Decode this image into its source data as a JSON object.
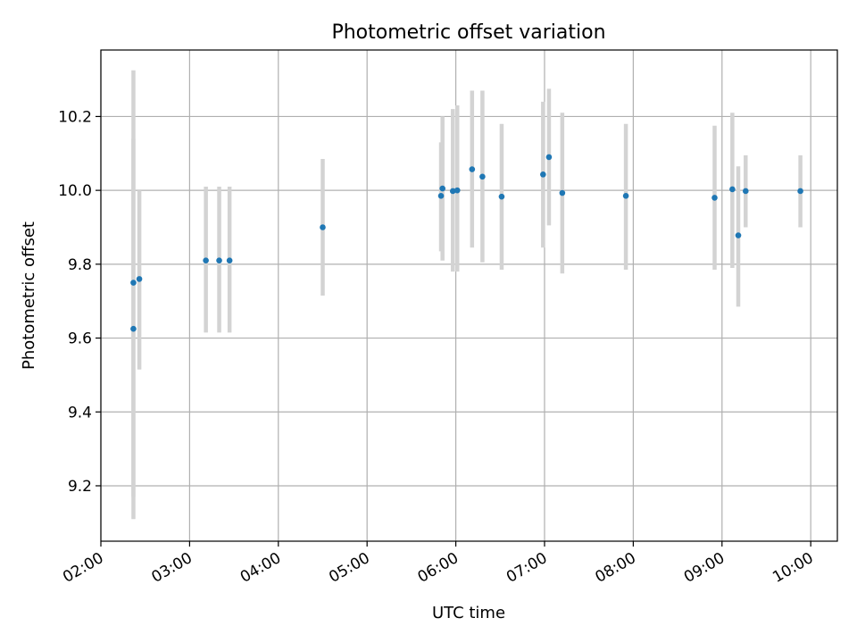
{
  "chart_data": {
    "type": "scatter",
    "title": "Photometric offset variation",
    "xlabel": "UTC time",
    "ylabel": "Photometric offset",
    "x_tick_labels": [
      "02:00",
      "03:00",
      "04:00",
      "05:00",
      "06:00",
      "07:00",
      "08:00",
      "09:00",
      "10:00"
    ],
    "y_tick_labels": [
      "9.2",
      "9.4",
      "9.6",
      "9.8",
      "10.0",
      "10.2"
    ],
    "x_ticks": [
      "02:00",
      "03:00",
      "04:00",
      "05:00",
      "06:00",
      "07:00",
      "08:00",
      "09:00",
      "10:00"
    ],
    "y_ticks": [
      9.2,
      9.4,
      9.6,
      9.8,
      10.0,
      10.2
    ],
    "xlim": [
      "02:00",
      "10:18"
    ],
    "ylim": [
      9.05,
      10.38
    ],
    "grid": true,
    "legend": "none",
    "colors": {
      "point": "#1f77b4",
      "error_bar": "#d3d3d3",
      "grid": "#b0b0b0"
    },
    "points": [
      {
        "time": "02:22",
        "y": 9.625,
        "ylo": 9.11,
        "yhi": 10.14
      },
      {
        "time": "02:22",
        "y": 9.75,
        "ylo": 9.17,
        "yhi": 10.325
      },
      {
        "time": "02:26",
        "y": 9.76,
        "ylo": 9.515,
        "yhi": 10.0
      },
      {
        "time": "03:11",
        "y": 9.81,
        "ylo": 9.615,
        "yhi": 10.01
      },
      {
        "time": "03:20",
        "y": 9.81,
        "ylo": 9.615,
        "yhi": 10.01
      },
      {
        "time": "03:27",
        "y": 9.81,
        "ylo": 9.615,
        "yhi": 10.01
      },
      {
        "time": "04:30",
        "y": 9.9,
        "ylo": 9.715,
        "yhi": 10.085
      },
      {
        "time": "05:50",
        "y": 9.985,
        "ylo": 9.835,
        "yhi": 10.13
      },
      {
        "time": "05:51",
        "y": 10.005,
        "ylo": 9.81,
        "yhi": 10.2
      },
      {
        "time": "05:58",
        "y": 9.998,
        "ylo": 9.78,
        "yhi": 10.22
      },
      {
        "time": "06:01",
        "y": 10.0,
        "ylo": 9.78,
        "yhi": 10.23
      },
      {
        "time": "06:11",
        "y": 10.057,
        "ylo": 9.845,
        "yhi": 10.27
      },
      {
        "time": "06:18",
        "y": 10.037,
        "ylo": 9.805,
        "yhi": 10.27
      },
      {
        "time": "06:31",
        "y": 9.983,
        "ylo": 9.785,
        "yhi": 10.18
      },
      {
        "time": "06:59",
        "y": 10.043,
        "ylo": 9.845,
        "yhi": 10.24
      },
      {
        "time": "07:03",
        "y": 10.09,
        "ylo": 9.905,
        "yhi": 10.275
      },
      {
        "time": "07:12",
        "y": 9.993,
        "ylo": 9.775,
        "yhi": 10.21
      },
      {
        "time": "07:55",
        "y": 9.985,
        "ylo": 9.785,
        "yhi": 10.18
      },
      {
        "time": "08:55",
        "y": 9.98,
        "ylo": 9.785,
        "yhi": 10.175
      },
      {
        "time": "09:07",
        "y": 10.003,
        "ylo": 9.79,
        "yhi": 10.21
      },
      {
        "time": "09:11",
        "y": 9.878,
        "ylo": 9.685,
        "yhi": 10.065
      },
      {
        "time": "09:16",
        "y": 9.998,
        "ylo": 9.9,
        "yhi": 10.095
      },
      {
        "time": "09:53",
        "y": 9.998,
        "ylo": 9.9,
        "yhi": 10.095
      }
    ]
  }
}
